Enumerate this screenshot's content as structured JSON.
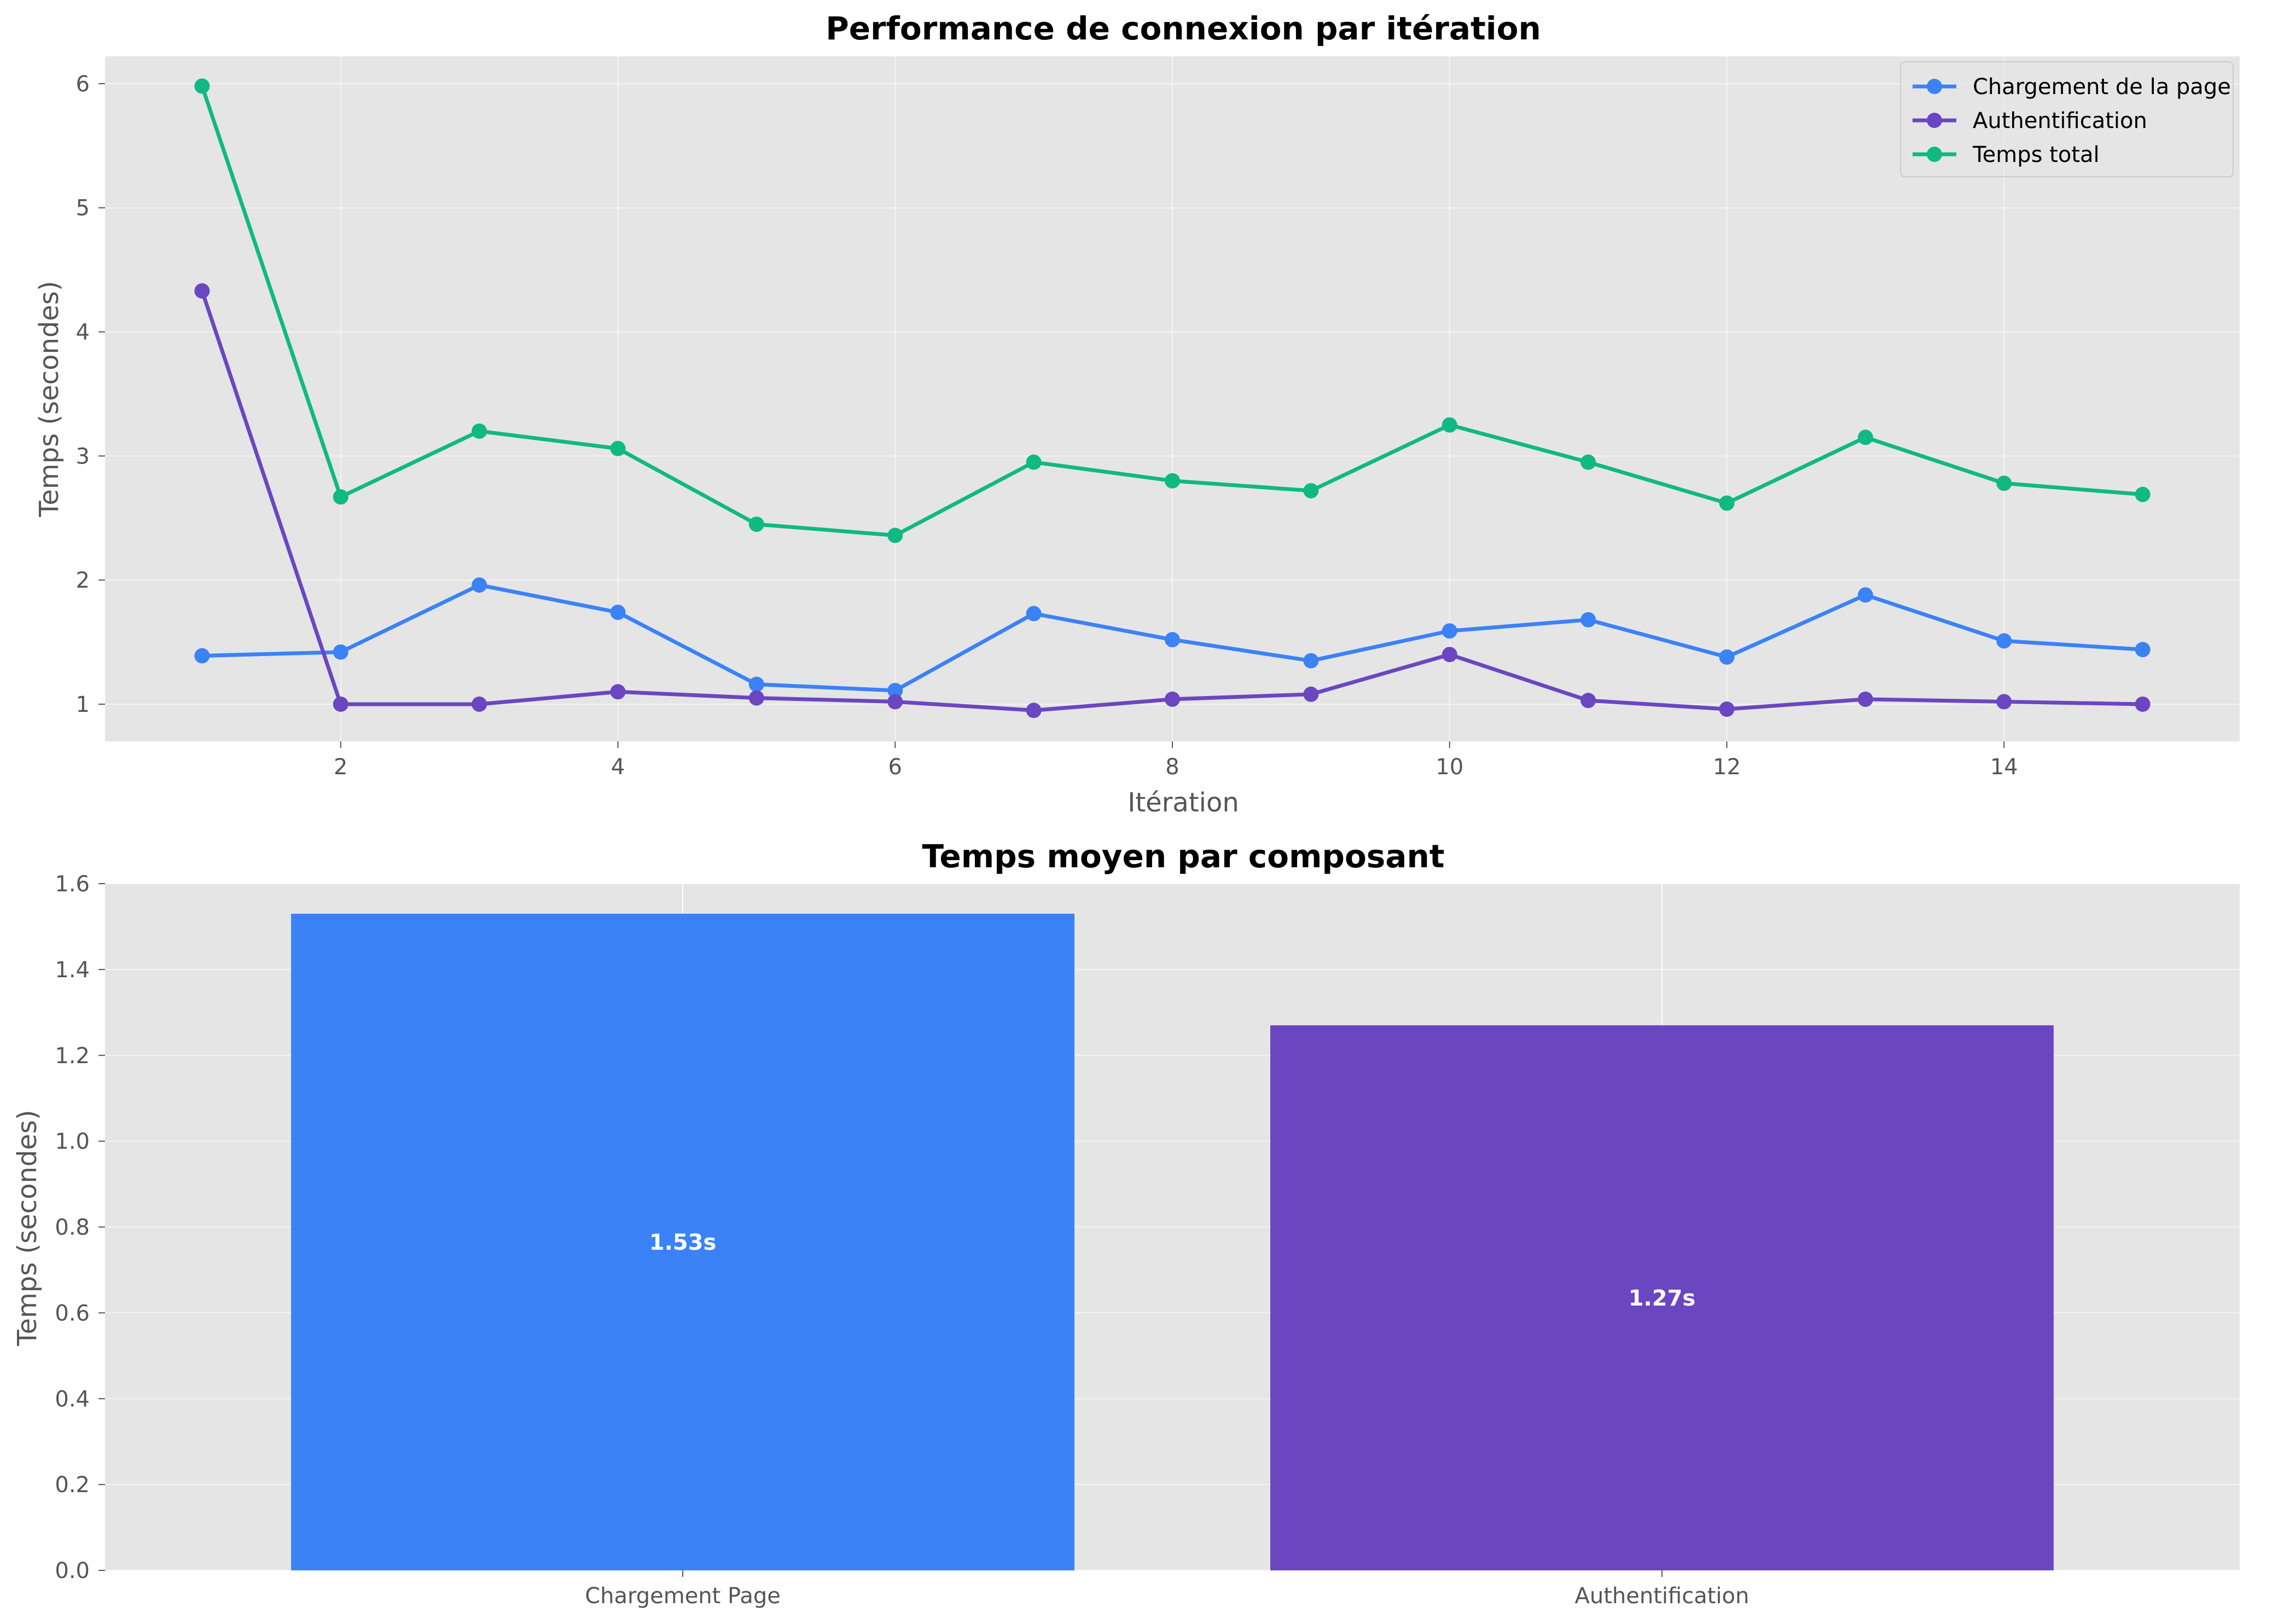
{
  "figure": {
    "background_color": "#ffffff",
    "panel_color": "#e5e5e5",
    "grid_color": "#ffffff"
  },
  "chart_data": [
    {
      "type": "line",
      "title": "Performance de connexion par itération",
      "xlabel": "Itération",
      "ylabel": "Temps (secondes)",
      "x": [
        1,
        2,
        3,
        4,
        5,
        6,
        7,
        8,
        9,
        10,
        11,
        12,
        13,
        14,
        15
      ],
      "xticks": [
        "2",
        "4",
        "6",
        "8",
        "10",
        "12",
        "14"
      ],
      "yticks": [
        "1",
        "2",
        "3",
        "4",
        "5",
        "6"
      ],
      "xlim": [
        0.3,
        15.7
      ],
      "ylim": [
        0.7,
        6.22
      ],
      "grid": true,
      "legend_position": "top-right",
      "series": [
        {
          "name": "Chargement de la page",
          "color": "#3b82f6",
          "marker": "circle",
          "values": [
            1.39,
            1.42,
            1.96,
            1.74,
            1.16,
            1.11,
            1.73,
            1.52,
            1.35,
            1.59,
            1.68,
            1.38,
            1.88,
            1.51,
            1.44
          ]
        },
        {
          "name": "Authentification",
          "color": "#6b46c1",
          "marker": "circle",
          "values": [
            4.33,
            1.0,
            1.0,
            1.1,
            1.05,
            1.02,
            0.95,
            1.04,
            1.08,
            1.4,
            1.03,
            0.96,
            1.04,
            1.02,
            1.0
          ]
        },
        {
          "name": "Temps total",
          "color": "#10b981",
          "marker": "circle",
          "values": [
            5.98,
            2.67,
            3.2,
            3.06,
            2.45,
            2.36,
            2.95,
            2.8,
            2.72,
            3.25,
            2.95,
            2.62,
            3.15,
            2.78,
            2.69
          ]
        }
      ]
    },
    {
      "type": "bar",
      "title": "Temps moyen par composant",
      "xlabel": "",
      "ylabel": "Temps (secondes)",
      "categories": [
        "Chargement Page",
        "Authentification"
      ],
      "values": [
        1.53,
        1.27
      ],
      "value_labels": [
        "1.53s",
        "1.27s"
      ],
      "colors": [
        "#3b82f6",
        "#6b46c1"
      ],
      "yticks": [
        "0.0",
        "0.2",
        "0.4",
        "0.6",
        "0.8",
        "1.0",
        "1.2",
        "1.4",
        "1.6"
      ],
      "ylim": [
        0,
        1.6
      ],
      "grid": true
    }
  ]
}
